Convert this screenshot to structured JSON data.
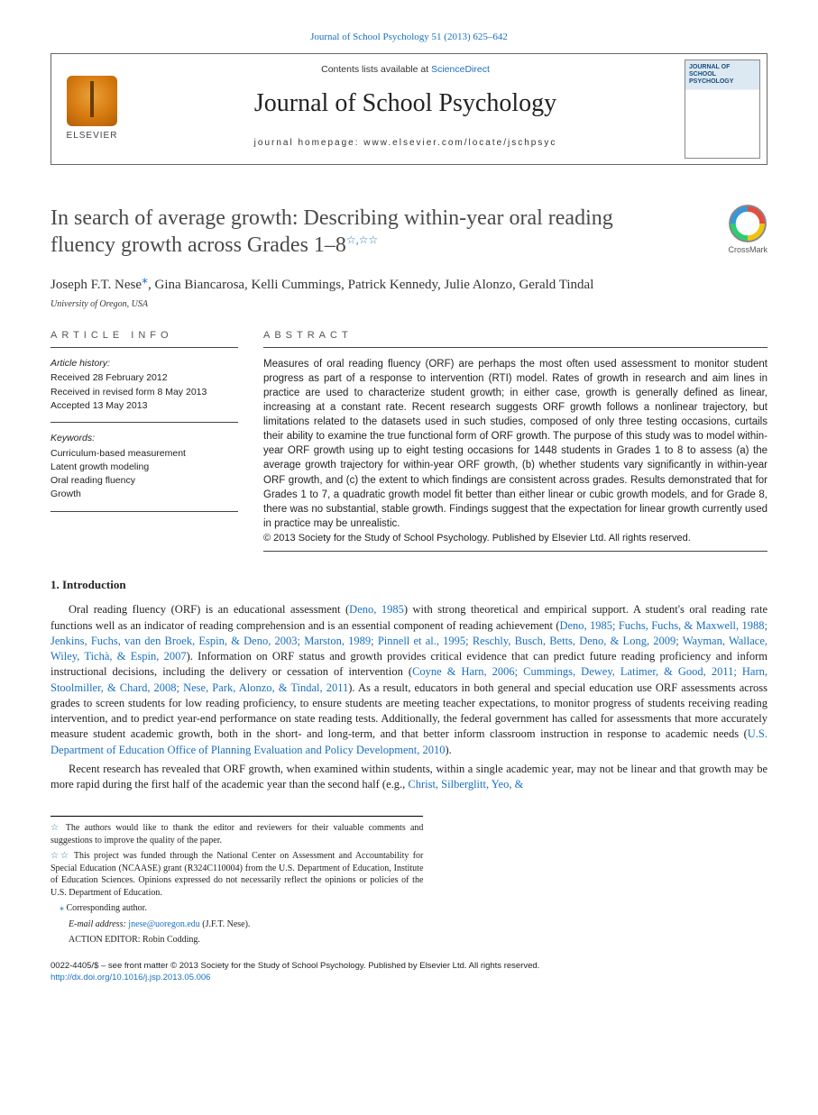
{
  "header": {
    "citation_link": "Journal of School Psychology 51 (2013) 625–642",
    "contents_line_prefix": "Contents lists available at ",
    "contents_line_link": "ScienceDirect",
    "journal_name": "Journal of School Psychology",
    "homepage_prefix": "journal homepage: ",
    "homepage_url": "www.elsevier.com/locate/jschpsyc",
    "publisher_word": "ELSEVIER",
    "cover_title": "JOURNAL OF SCHOOL PSYCHOLOGY"
  },
  "crossmark": {
    "label": "CrossMark"
  },
  "title": {
    "main": "In search of average growth: Describing within-year oral reading fluency growth across Grades 1–8",
    "stars": "☆,☆☆"
  },
  "authors": {
    "list": "Joseph F.T. Nese",
    "corr_mark": "⁎",
    "rest": ", Gina Biancarosa, Kelli Cummings, Patrick Kennedy, Julie Alonzo, Gerald Tindal",
    "affiliation": "University of Oregon, USA"
  },
  "info": {
    "label": "ARTICLE INFO",
    "history_label": "Article history:",
    "history_1": "Received 28 February 2012",
    "history_2": "Received in revised form 8 May 2013",
    "history_3": "Accepted 13 May 2013",
    "keywords_label": "Keywords:",
    "kw1": "Curriculum-based measurement",
    "kw2": "Latent growth modeling",
    "kw3": "Oral reading fluency",
    "kw4": "Growth"
  },
  "abstract": {
    "label": "ABSTRACT",
    "text": "Measures of oral reading fluency (ORF) are perhaps the most often used assessment to monitor student progress as part of a response to intervention (RTI) model. Rates of growth in research and aim lines in practice are used to characterize student growth; in either case, growth is generally defined as linear, increasing at a constant rate. Recent research suggests ORF growth follows a nonlinear trajectory, but limitations related to the datasets used in such studies, composed of only three testing occasions, curtails their ability to examine the true functional form of ORF growth. The purpose of this study was to model within-year ORF growth using up to eight testing occasions for 1448 students in Grades 1 to 8 to assess (a) the average growth trajectory for within-year ORF growth, (b) whether students vary significantly in within-year ORF growth, and (c) the extent to which findings are consistent across grades. Results demonstrated that for Grades 1 to 7, a quadratic growth model fit better than either linear or cubic growth models, and for Grade 8, there was no substantial, stable growth. Findings suggest that the expectation for linear growth currently used in practice may be unrealistic.",
    "copyright": "© 2013 Society for the Study of School Psychology. Published by Elsevier Ltd. All rights reserved."
  },
  "intro": {
    "heading": "1. Introduction",
    "p1_a": "Oral reading fluency (ORF) is an educational assessment (",
    "p1_l1": "Deno, 1985",
    "p1_b": ") with strong theoretical and empirical support. A student's oral reading rate functions well as an indicator of reading comprehension and is an essential component of reading achievement (",
    "p1_l2": "Deno, 1985; Fuchs, Fuchs, & Maxwell, 1988; Jenkins, Fuchs, van den Broek, Espin, & Deno, 2003; Marston, 1989; Pinnell et al., 1995; Reschly, Busch, Betts, Deno, & Long, 2009; Wayman, Wallace, Wiley, Tichà, & Espin, 2007",
    "p1_c": "). Information on ORF status and growth provides critical evidence that can predict future reading proficiency and inform instructional decisions, including the delivery or cessation of intervention (",
    "p1_l3": "Coyne & Harn, 2006; Cummings, Dewey, Latimer, & Good, 2011; Harn, Stoolmiller, & Chard, 2008; Nese, Park, Alonzo, & Tindal, 2011",
    "p1_d": "). As a result, educators in both general and special education use ORF assessments across grades to screen students for low reading proficiency, to ensure students are meeting teacher expectations, to monitor progress of students receiving reading intervention, and to predict year-end performance on state reading tests. Additionally, the federal government has called for assessments that more accurately measure student academic growth, both in the short- and long-term, and that better inform classroom instruction in response to academic needs (",
    "p1_l4": "U.S. Department of Education Office of Planning Evaluation and Policy Development, 2010",
    "p1_e": ").",
    "p2_a": "Recent research has revealed that ORF growth, when examined within students, within a single academic year, may not be linear and that growth may be more rapid during the first half of the academic year than the second half (e.g., ",
    "p2_l1": "Christ, Silberglitt, Yeo, &"
  },
  "footnotes": {
    "f1_mark": "☆",
    "f1": " The authors would like to thank the editor and reviewers for their valuable comments and suggestions to improve the quality of the paper.",
    "f2_mark": "☆☆",
    "f2": " This project was funded through the National Center on Assessment and Accountability for Special Education (NCAASE) grant (R324C110004) from the U.S. Department of Education, Institute of Education Sciences. Opinions expressed do not necessarily reflect the opinions or policies of the U.S. Department of Education.",
    "f3_mark": "⁎",
    "f3": " Corresponding author.",
    "email_label": "E-mail address: ",
    "email": "jnese@uoregon.edu",
    "email_suffix": " (J.F.T. Nese).",
    "action_editor": "ACTION EDITOR: Robin Codding."
  },
  "bottom": {
    "line1": "0022-4405/$ – see front matter © 2013 Society for the Study of School Psychology. Published by Elsevier Ltd. All rights reserved.",
    "doi": "http://dx.doi.org/10.1016/j.jsp.2013.05.006"
  }
}
